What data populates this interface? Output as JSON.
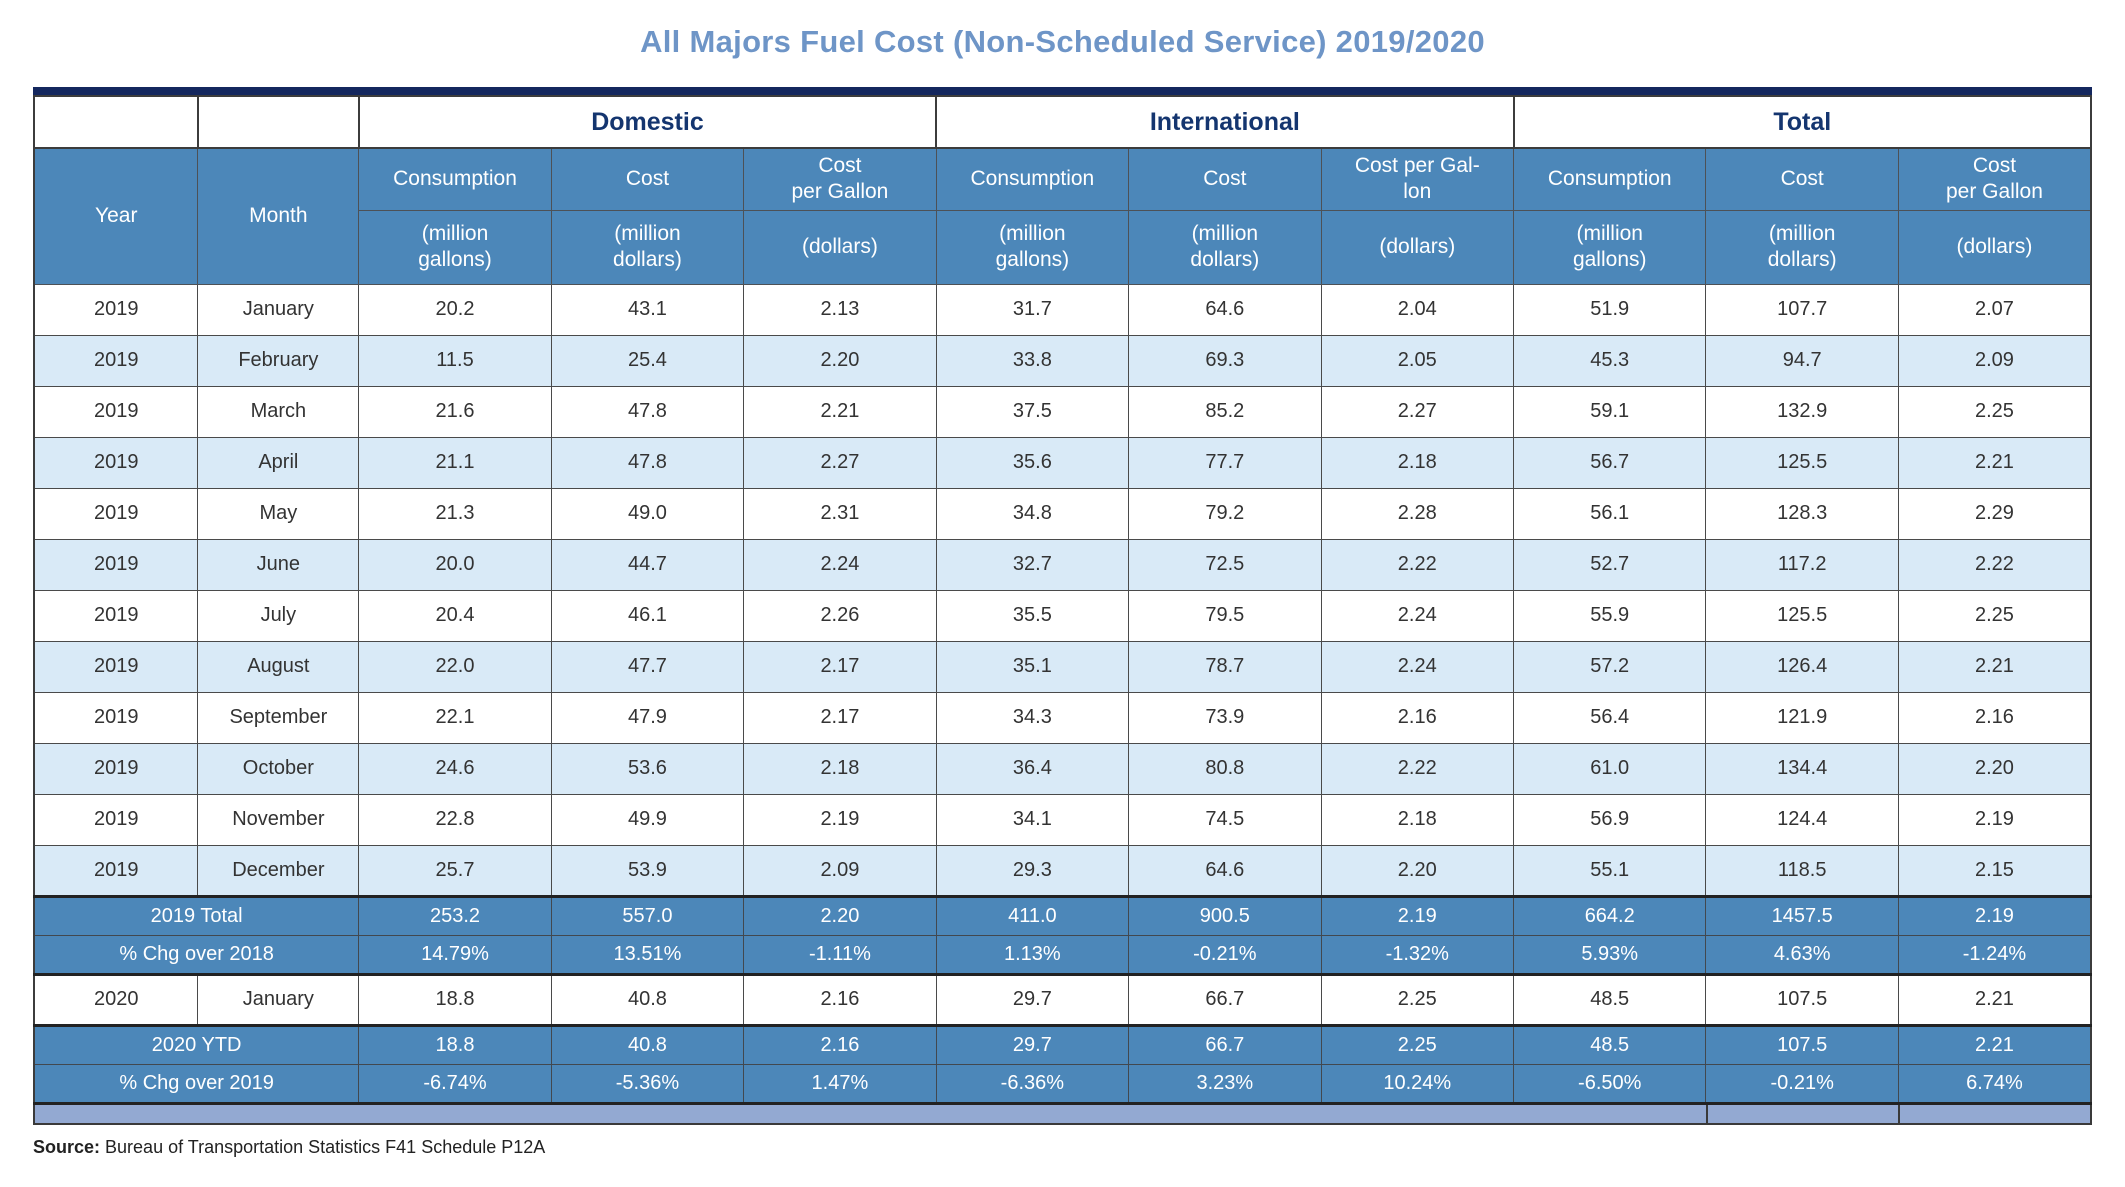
{
  "title": "All Majors Fuel Cost (Non-Scheduled Service) 2019/2020",
  "source": {
    "label": "Source:",
    "text": " Bureau of Transportation Statistics F41 Schedule P12A"
  },
  "colors": {
    "title_blue": "#6e95c7",
    "navy_rule": "#14275e",
    "group_text_navy": "#14356f",
    "header_blue": "#4c87b9",
    "row_alt_blue": "#d9eaf7",
    "summary_row_blue": "#4c87b9",
    "footer_bar_blue": "#93a9d2",
    "cell_text": "#333333"
  },
  "chart_data": {
    "type": "table",
    "title": "All Majors Fuel Cost (Non-Scheduled Service) 2019/2020",
    "year_header": "Year",
    "month_header": "Month",
    "groups": [
      "Domestic",
      "International",
      "Total"
    ],
    "columns": [
      {
        "label": "Consumption",
        "unit": "(million\ngallons)"
      },
      {
        "label": "Cost",
        "unit": "(million\ndollars)"
      },
      {
        "label": "Cost\nper Gallon",
        "unit": "(dollars)"
      },
      {
        "label": "Consumption",
        "unit": "(million\ngallons)"
      },
      {
        "label": "Cost",
        "unit": "(million\ndollars)"
      },
      {
        "label": "Cost per Gal-\nlon",
        "unit": "(dollars)"
      },
      {
        "label": "Consumption",
        "unit": "(million\ngallons)"
      },
      {
        "label": "Cost",
        "unit": "(million\ndollars)"
      },
      {
        "label": "Cost\nper Gallon",
        "unit": "(dollars)"
      }
    ],
    "rows": [
      {
        "type": "data",
        "year": "2019",
        "month": "January",
        "values": [
          "20.2",
          "43.1",
          "2.13",
          "31.7",
          "64.6",
          "2.04",
          "51.9",
          "107.7",
          "2.07"
        ]
      },
      {
        "type": "data",
        "year": "2019",
        "month": "February",
        "values": [
          "11.5",
          "25.4",
          "2.20",
          "33.8",
          "69.3",
          "2.05",
          "45.3",
          "94.7",
          "2.09"
        ]
      },
      {
        "type": "data",
        "year": "2019",
        "month": "March",
        "values": [
          "21.6",
          "47.8",
          "2.21",
          "37.5",
          "85.2",
          "2.27",
          "59.1",
          "132.9",
          "2.25"
        ]
      },
      {
        "type": "data",
        "year": "2019",
        "month": "April",
        "values": [
          "21.1",
          "47.8",
          "2.27",
          "35.6",
          "77.7",
          "2.18",
          "56.7",
          "125.5",
          "2.21"
        ]
      },
      {
        "type": "data",
        "year": "2019",
        "month": "May",
        "values": [
          "21.3",
          "49.0",
          "2.31",
          "34.8",
          "79.2",
          "2.28",
          "56.1",
          "128.3",
          "2.29"
        ]
      },
      {
        "type": "data",
        "year": "2019",
        "month": "June",
        "values": [
          "20.0",
          "44.7",
          "2.24",
          "32.7",
          "72.5",
          "2.22",
          "52.7",
          "117.2",
          "2.22"
        ]
      },
      {
        "type": "data",
        "year": "2019",
        "month": "July",
        "values": [
          "20.4",
          "46.1",
          "2.26",
          "35.5",
          "79.5",
          "2.24",
          "55.9",
          "125.5",
          "2.25"
        ]
      },
      {
        "type": "data",
        "year": "2019",
        "month": "August",
        "values": [
          "22.0",
          "47.7",
          "2.17",
          "35.1",
          "78.7",
          "2.24",
          "57.2",
          "126.4",
          "2.21"
        ]
      },
      {
        "type": "data",
        "year": "2019",
        "month": "September",
        "values": [
          "22.1",
          "47.9",
          "2.17",
          "34.3",
          "73.9",
          "2.16",
          "56.4",
          "121.9",
          "2.16"
        ]
      },
      {
        "type": "data",
        "year": "2019",
        "month": "October",
        "values": [
          "24.6",
          "53.6",
          "2.18",
          "36.4",
          "80.8",
          "2.22",
          "61.0",
          "134.4",
          "2.20"
        ]
      },
      {
        "type": "data",
        "year": "2019",
        "month": "November",
        "values": [
          "22.8",
          "49.9",
          "2.19",
          "34.1",
          "74.5",
          "2.18",
          "56.9",
          "124.4",
          "2.19"
        ]
      },
      {
        "type": "data",
        "year": "2019",
        "month": "December",
        "values": [
          "25.7",
          "53.9",
          "2.09",
          "29.3",
          "64.6",
          "2.20",
          "55.1",
          "118.5",
          "2.15"
        ]
      },
      {
        "type": "summary",
        "label": "2019 Total",
        "values": [
          "253.2",
          "557.0",
          "2.20",
          "411.0",
          "900.5",
          "2.19",
          "664.2",
          "1457.5",
          "2.19"
        ]
      },
      {
        "type": "summary",
        "label": "% Chg over 2018",
        "values": [
          "14.79%",
          "13.51%",
          "-1.11%",
          "1.13%",
          "-0.21%",
          "-1.32%",
          "5.93%",
          "4.63%",
          "-1.24%"
        ]
      },
      {
        "type": "data",
        "year": "2020",
        "month": "January",
        "values": [
          "18.8",
          "40.8",
          "2.16",
          "29.7",
          "66.7",
          "2.25",
          "48.5",
          "107.5",
          "2.21"
        ]
      },
      {
        "type": "summary",
        "label": "2020 YTD",
        "values": [
          "18.8",
          "40.8",
          "2.16",
          "29.7",
          "66.7",
          "2.25",
          "48.5",
          "107.5",
          "2.21"
        ]
      },
      {
        "type": "summary",
        "label": "% Chg over 2019",
        "values": [
          "-6.74%",
          "-5.36%",
          "1.47%",
          "-6.36%",
          "3.23%",
          "10.24%",
          "-6.50%",
          "-0.21%",
          "6.74%"
        ]
      }
    ]
  }
}
